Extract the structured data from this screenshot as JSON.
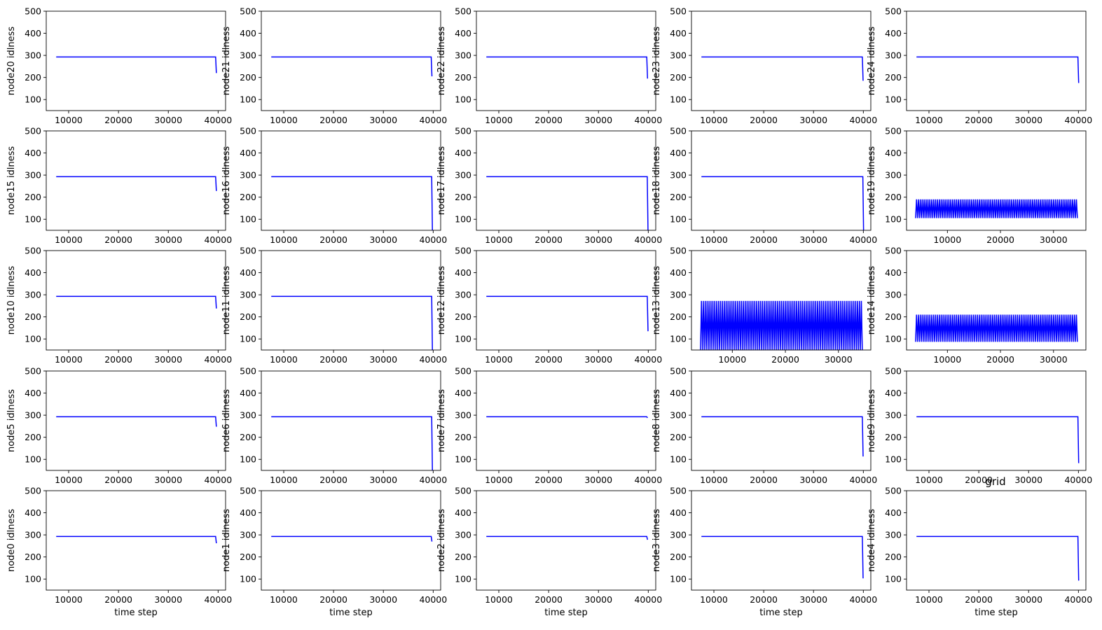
{
  "figure": {
    "title": "grid",
    "line_color": "#0000ff",
    "xlabel": "time step"
  },
  "chart_data": [
    {
      "type": "line",
      "ylabel": "node20 idlness",
      "ylim": [
        50,
        500
      ],
      "xlim": [
        5500,
        41500
      ],
      "xticks": [
        10000,
        20000,
        30000,
        40000
      ],
      "yticks": [
        100,
        200,
        300,
        400,
        500
      ],
      "pattern": "flat_drop",
      "x_start": 7500,
      "x_end": 39500,
      "plateau": 293,
      "end_value": 220,
      "osc_low": null,
      "osc_high": null,
      "xlabel": ""
    },
    {
      "type": "line",
      "ylabel": "node21 idlness",
      "ylim": [
        50,
        500
      ],
      "xlim": [
        5500,
        41500
      ],
      "xticks": [
        10000,
        20000,
        30000,
        40000
      ],
      "yticks": [
        100,
        200,
        300,
        400,
        500
      ],
      "pattern": "flat_drop",
      "x_start": 7500,
      "x_end": 39600,
      "plateau": 293,
      "end_value": 205,
      "osc_low": null,
      "osc_high": null,
      "xlabel": ""
    },
    {
      "type": "line",
      "ylabel": "node22 idlness",
      "ylim": [
        50,
        500
      ],
      "xlim": [
        5500,
        41500
      ],
      "xticks": [
        10000,
        20000,
        30000,
        40000
      ],
      "yticks": [
        100,
        200,
        300,
        400,
        500
      ],
      "pattern": "flat_drop",
      "x_start": 7500,
      "x_end": 39700,
      "plateau": 293,
      "end_value": 195,
      "osc_low": null,
      "osc_high": null,
      "xlabel": ""
    },
    {
      "type": "line",
      "ylabel": "node23 idlness",
      "ylim": [
        50,
        500
      ],
      "xlim": [
        5500,
        41500
      ],
      "xticks": [
        10000,
        20000,
        30000,
        40000
      ],
      "yticks": [
        100,
        200,
        300,
        400,
        500
      ],
      "pattern": "flat_drop",
      "x_start": 7500,
      "x_end": 39800,
      "plateau": 293,
      "end_value": 185,
      "osc_low": null,
      "osc_high": null,
      "xlabel": ""
    },
    {
      "type": "line",
      "ylabel": "node24 idlness",
      "ylim": [
        50,
        500
      ],
      "xlim": [
        5500,
        41500
      ],
      "xticks": [
        10000,
        20000,
        30000,
        40000
      ],
      "yticks": [
        100,
        200,
        300,
        400,
        500
      ],
      "pattern": "flat_drop",
      "x_start": 7500,
      "x_end": 39900,
      "plateau": 293,
      "end_value": 175,
      "osc_low": null,
      "osc_high": null,
      "xlabel": ""
    },
    {
      "type": "line",
      "ylabel": "node15 idlness",
      "ylim": [
        50,
        500
      ],
      "xlim": [
        5500,
        41500
      ],
      "xticks": [
        10000,
        20000,
        30000,
        40000
      ],
      "yticks": [
        100,
        200,
        300,
        400,
        500
      ],
      "pattern": "flat_drop",
      "x_start": 7500,
      "x_end": 39500,
      "plateau": 293,
      "end_value": 228,
      "osc_low": null,
      "osc_high": null,
      "xlabel": ""
    },
    {
      "type": "line",
      "ylabel": "node16 idlness",
      "ylim": [
        50,
        500
      ],
      "xlim": [
        5500,
        41500
      ],
      "xticks": [
        10000,
        20000,
        30000,
        40000
      ],
      "yticks": [
        100,
        200,
        300,
        400,
        500
      ],
      "pattern": "flat_drop",
      "x_start": 7500,
      "x_end": 39700,
      "plateau": 293,
      "end_value": 40,
      "osc_low": null,
      "osc_high": null,
      "xlabel": ""
    },
    {
      "type": "line",
      "ylabel": "node17 idlness",
      "ylim": [
        50,
        500
      ],
      "xlim": [
        5500,
        41500
      ],
      "xticks": [
        10000,
        20000,
        30000,
        40000
      ],
      "yticks": [
        100,
        200,
        300,
        400,
        500
      ],
      "pattern": "flat_drop",
      "x_start": 7500,
      "x_end": 39800,
      "plateau": 293,
      "end_value": 40,
      "osc_low": null,
      "osc_high": null,
      "xlabel": ""
    },
    {
      "type": "line",
      "ylabel": "node18 idlness",
      "ylim": [
        50,
        500
      ],
      "xlim": [
        5500,
        41500
      ],
      "xticks": [
        10000,
        20000,
        30000,
        40000
      ],
      "yticks": [
        100,
        200,
        300,
        400,
        500
      ],
      "pattern": "flat_drop",
      "x_start": 7500,
      "x_end": 39900,
      "plateau": 293,
      "end_value": 40,
      "osc_low": null,
      "osc_high": null,
      "xlabel": ""
    },
    {
      "type": "line",
      "ylabel": "node19 idlness",
      "ylim": [
        50,
        500
      ],
      "xlim": [
        2300,
        36100
      ],
      "xticks": [
        10000,
        20000,
        30000
      ],
      "yticks": [
        100,
        200,
        300,
        400,
        500
      ],
      "pattern": "oscillate",
      "x_start": 4000,
      "x_end": 34500,
      "plateau": null,
      "end_value": null,
      "osc_low": 105,
      "osc_high": 190,
      "xlabel": ""
    },
    {
      "type": "line",
      "ylabel": "node10 idlness",
      "ylim": [
        50,
        500
      ],
      "xlim": [
        5500,
        41500
      ],
      "xticks": [
        10000,
        20000,
        30000,
        40000
      ],
      "yticks": [
        100,
        200,
        300,
        400,
        500
      ],
      "pattern": "flat_drop",
      "x_start": 7500,
      "x_end": 39500,
      "plateau": 293,
      "end_value": 238,
      "osc_low": null,
      "osc_high": null,
      "xlabel": ""
    },
    {
      "type": "line",
      "ylabel": "node11 idlness",
      "ylim": [
        50,
        500
      ],
      "xlim": [
        5500,
        41500
      ],
      "xticks": [
        10000,
        20000,
        30000,
        40000
      ],
      "yticks": [
        100,
        200,
        300,
        400,
        500
      ],
      "pattern": "flat_drop",
      "x_start": 7500,
      "x_end": 39700,
      "plateau": 293,
      "end_value": 40,
      "osc_low": null,
      "osc_high": null,
      "xlabel": ""
    },
    {
      "type": "line",
      "ylabel": "node12 idlness",
      "ylim": [
        50,
        500
      ],
      "xlim": [
        5500,
        41500
      ],
      "xticks": [
        10000,
        20000,
        30000,
        40000
      ],
      "yticks": [
        100,
        200,
        300,
        400,
        500
      ],
      "pattern": "flat_drop",
      "x_start": 7500,
      "x_end": 39800,
      "plateau": 293,
      "end_value": 135,
      "osc_low": null,
      "osc_high": null,
      "xlabel": ""
    },
    {
      "type": "line",
      "ylabel": "node13 idlness",
      "ylim": [
        50,
        500
      ],
      "xlim": [
        2300,
        36100
      ],
      "xticks": [
        10000,
        20000,
        30000
      ],
      "yticks": [
        100,
        200,
        300,
        400,
        500
      ],
      "pattern": "oscillate",
      "x_start": 4000,
      "x_end": 34500,
      "plateau": null,
      "end_value": null,
      "osc_low": 50,
      "osc_high": 272,
      "xlabel": ""
    },
    {
      "type": "line",
      "ylabel": "node14 idlness",
      "ylim": [
        50,
        500
      ],
      "xlim": [
        2300,
        36100
      ],
      "xticks": [
        10000,
        20000,
        30000
      ],
      "yticks": [
        100,
        200,
        300,
        400,
        500
      ],
      "pattern": "oscillate",
      "x_start": 4000,
      "x_end": 34500,
      "plateau": null,
      "end_value": null,
      "osc_low": 87,
      "osc_high": 210,
      "xlabel": ""
    },
    {
      "type": "line",
      "ylabel": "node5 idlness",
      "ylim": [
        50,
        500
      ],
      "xlim": [
        5500,
        41500
      ],
      "xticks": [
        10000,
        20000,
        30000,
        40000
      ],
      "yticks": [
        100,
        200,
        300,
        400,
        500
      ],
      "pattern": "flat_drop",
      "x_start": 7500,
      "x_end": 39500,
      "plateau": 293,
      "end_value": 248,
      "osc_low": null,
      "osc_high": null,
      "xlabel": ""
    },
    {
      "type": "line",
      "ylabel": "node6 idlness",
      "ylim": [
        50,
        500
      ],
      "xlim": [
        5500,
        41500
      ],
      "xticks": [
        10000,
        20000,
        30000,
        40000
      ],
      "yticks": [
        100,
        200,
        300,
        400,
        500
      ],
      "pattern": "flat_drop",
      "x_start": 7500,
      "x_end": 39700,
      "plateau": 293,
      "end_value": 40,
      "osc_low": null,
      "osc_high": null,
      "xlabel": ""
    },
    {
      "type": "line",
      "ylabel": "node7 idlness",
      "ylim": [
        50,
        500
      ],
      "xlim": [
        5500,
        41500
      ],
      "xticks": [
        10000,
        20000,
        30000,
        40000
      ],
      "yticks": [
        100,
        200,
        300,
        400,
        500
      ],
      "pattern": "flat_drop",
      "x_start": 7500,
      "x_end": 39700,
      "plateau": 293,
      "end_value": 288,
      "osc_low": null,
      "osc_high": null,
      "xlabel": ""
    },
    {
      "type": "line",
      "ylabel": "node8 idlness",
      "ylim": [
        50,
        500
      ],
      "xlim": [
        5500,
        41500
      ],
      "xticks": [
        10000,
        20000,
        30000,
        40000
      ],
      "yticks": [
        100,
        200,
        300,
        400,
        500
      ],
      "pattern": "flat_drop",
      "x_start": 7500,
      "x_end": 39800,
      "plateau": 293,
      "end_value": 113,
      "osc_low": null,
      "osc_high": null,
      "xlabel": ""
    },
    {
      "type": "line",
      "ylabel": "node9 idlness",
      "ylim": [
        50,
        500
      ],
      "xlim": [
        5500,
        41500
      ],
      "xticks": [
        10000,
        20000,
        30000,
        40000
      ],
      "yticks": [
        100,
        200,
        300,
        400,
        500
      ],
      "pattern": "flat_drop",
      "x_start": 7500,
      "x_end": 39900,
      "plateau": 293,
      "end_value": 83,
      "osc_low": null,
      "osc_high": null,
      "xlabel": ""
    },
    {
      "type": "line",
      "ylabel": "node0 idlness",
      "ylim": [
        50,
        500
      ],
      "xlim": [
        5500,
        41500
      ],
      "xticks": [
        10000,
        20000,
        30000,
        40000
      ],
      "yticks": [
        100,
        200,
        300,
        400,
        500
      ],
      "pattern": "flat_drop",
      "x_start": 7500,
      "x_end": 39500,
      "plateau": 293,
      "end_value": 262,
      "osc_low": null,
      "osc_high": null,
      "xlabel": "time step"
    },
    {
      "type": "line",
      "ylabel": "node1 idlness",
      "ylim": [
        50,
        500
      ],
      "xlim": [
        5500,
        41500
      ],
      "xticks": [
        10000,
        20000,
        30000,
        40000
      ],
      "yticks": [
        100,
        200,
        300,
        400,
        500
      ],
      "pattern": "flat_drop",
      "x_start": 7500,
      "x_end": 39600,
      "plateau": 293,
      "end_value": 270,
      "osc_low": null,
      "osc_high": null,
      "xlabel": "time step"
    },
    {
      "type": "line",
      "ylabel": "node2 idlness",
      "ylim": [
        50,
        500
      ],
      "xlim": [
        5500,
        41500
      ],
      "xticks": [
        10000,
        20000,
        30000,
        40000
      ],
      "yticks": [
        100,
        200,
        300,
        400,
        500
      ],
      "pattern": "flat_drop",
      "x_start": 7500,
      "x_end": 39700,
      "plateau": 293,
      "end_value": 278,
      "osc_low": null,
      "osc_high": null,
      "xlabel": "time step"
    },
    {
      "type": "line",
      "ylabel": "node3 idlness",
      "ylim": [
        50,
        500
      ],
      "xlim": [
        5500,
        41500
      ],
      "xticks": [
        10000,
        20000,
        30000,
        40000
      ],
      "yticks": [
        100,
        200,
        300,
        400,
        500
      ],
      "pattern": "flat_drop",
      "x_start": 7500,
      "x_end": 39800,
      "plateau": 293,
      "end_value": 103,
      "osc_low": null,
      "osc_high": null,
      "xlabel": "time step"
    },
    {
      "type": "line",
      "ylabel": "node4 idlness",
      "ylim": [
        50,
        500
      ],
      "xlim": [
        5500,
        41500
      ],
      "xticks": [
        10000,
        20000,
        30000,
        40000
      ],
      "yticks": [
        100,
        200,
        300,
        400,
        500
      ],
      "pattern": "flat_drop",
      "x_start": 7500,
      "x_end": 39900,
      "plateau": 293,
      "end_value": 93,
      "osc_low": null,
      "osc_high": null,
      "xlabel": "time step"
    }
  ]
}
